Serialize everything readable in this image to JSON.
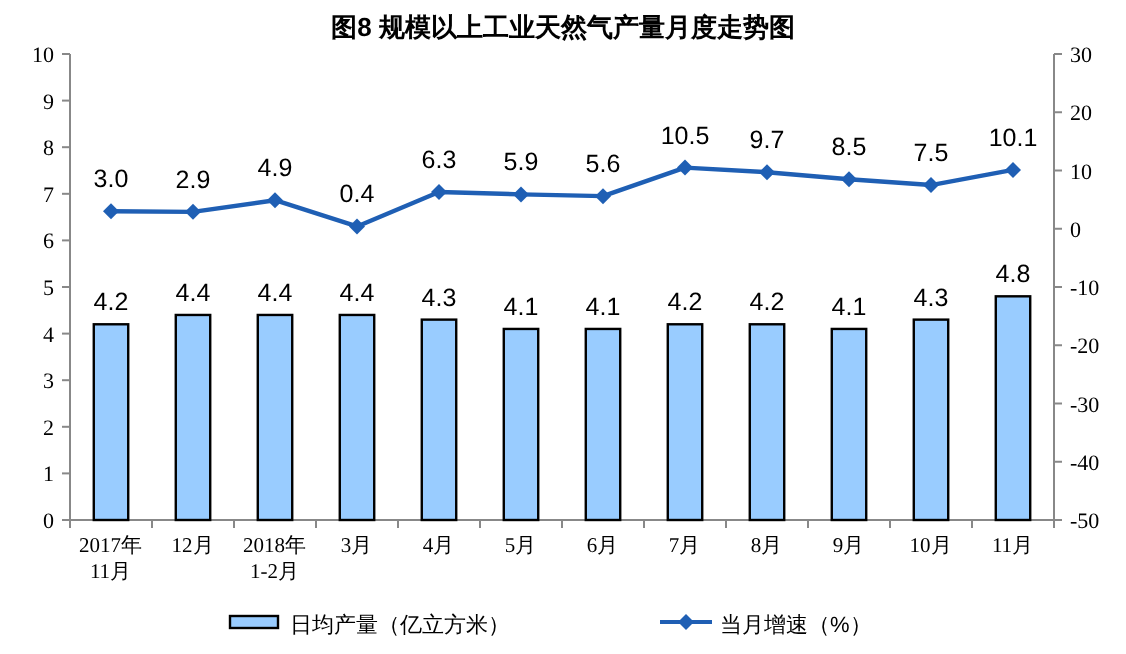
{
  "chart_data": {
    "type": "bar",
    "title": "图8  规模以上工业天然气产量月度走势图",
    "categories": [
      "2017年\n11月",
      "12月",
      "2018年\n1-2月",
      "3月",
      "4月",
      "5月",
      "6月",
      "7月",
      "8月",
      "9月",
      "10月",
      "11月"
    ],
    "series": [
      {
        "name": "日均产量（亿立方米）",
        "color": "#99ccff",
        "values": [
          4.2,
          4.4,
          4.4,
          4.4,
          4.3,
          4.1,
          4.1,
          4.2,
          4.2,
          4.1,
          4.3,
          4.8
        ],
        "value_labels": [
          "4.2",
          "4.4",
          "4.4",
          "4.4",
          "4.3",
          "4.1",
          "4.1",
          "4.2",
          "4.2",
          "4.1",
          "4.3",
          "4.8"
        ]
      },
      {
        "name": "当月增速（%）",
        "type": "line",
        "axis": "y2",
        "color": "#1f5fb4",
        "marker": "diamond",
        "values": [
          3.0,
          2.9,
          4.9,
          0.4,
          6.3,
          5.9,
          5.6,
          10.5,
          9.7,
          8.5,
          7.5,
          10.1
        ],
        "value_labels": [
          "3.0",
          "2.9",
          "4.9",
          "0.4",
          "6.3",
          "5.9",
          "5.6",
          "10.5",
          "9.7",
          "8.5",
          "7.5",
          "10.1"
        ]
      }
    ],
    "ylim": [
      0,
      10
    ],
    "yticks": [
      0,
      1,
      2,
      3,
      4,
      5,
      6,
      7,
      8,
      9,
      10
    ],
    "y2lim": [
      -50,
      30
    ],
    "y2ticks": [
      -50,
      -40,
      -30,
      -20,
      -10,
      0,
      10,
      20,
      30
    ],
    "legend": "bottom"
  }
}
